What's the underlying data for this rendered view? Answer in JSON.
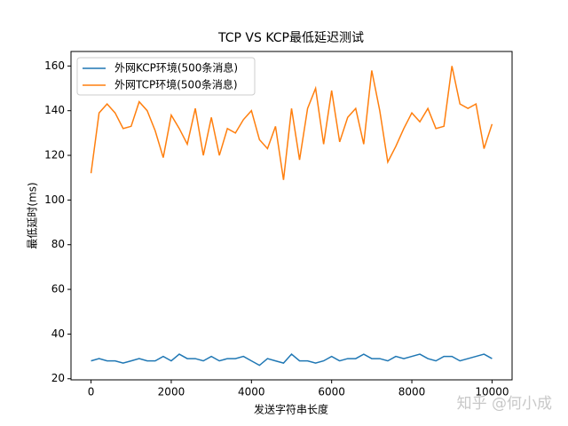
{
  "chart_data": {
    "type": "line",
    "title": "TCP VS KCP最低延迟测试",
    "x_label": "发送字符串长度",
    "y_label": "最低延时(ms)",
    "watermark": "知乎 @何小成",
    "x": [
      0,
      200,
      400,
      600,
      800,
      1000,
      1200,
      1400,
      1600,
      1800,
      2000,
      2200,
      2400,
      2600,
      2800,
      3000,
      3200,
      3400,
      3600,
      3800,
      4000,
      4200,
      4400,
      4600,
      4800,
      5000,
      5200,
      5400,
      5600,
      5800,
      6000,
      6200,
      6400,
      6600,
      6800,
      7000,
      7200,
      7400,
      7600,
      7800,
      8000,
      8200,
      8400,
      8600,
      8800,
      9000,
      9200,
      9400,
      9600,
      9800,
      10000
    ],
    "series": [
      {
        "name": "外网KCP环境(500条消息)",
        "color": "#1f77b4",
        "values": [
          28,
          29,
          28,
          28,
          27,
          28,
          29,
          28,
          28,
          30,
          28,
          31,
          29,
          29,
          28,
          30,
          28,
          29,
          29,
          30,
          28,
          26,
          29,
          28,
          27,
          31,
          28,
          28,
          27,
          28,
          30,
          28,
          29,
          29,
          31,
          29,
          29,
          28,
          30,
          29,
          30,
          31,
          29,
          28,
          30,
          30,
          28,
          29,
          30,
          31,
          29
        ]
      },
      {
        "name": "外网TCP环境(500条消息)",
        "color": "#ff7f0e",
        "values": [
          112,
          139,
          143,
          139,
          132,
          133,
          144,
          140,
          131,
          119,
          138,
          132,
          125,
          141,
          120,
          137,
          120,
          132,
          130,
          136,
          140,
          127,
          123,
          133,
          109,
          141,
          118,
          141,
          150,
          125,
          149,
          126,
          137,
          141,
          125,
          158,
          140,
          117,
          124,
          132,
          139,
          135,
          141,
          132,
          133,
          160,
          143,
          141,
          143,
          123,
          134
        ]
      }
    ],
    "xlim": [
      -500,
      10500
    ],
    "ylim": [
      19.5,
      166.5
    ],
    "xticks": [
      0,
      2000,
      4000,
      6000,
      8000,
      10000
    ],
    "yticks": [
      20,
      40,
      60,
      80,
      100,
      120,
      140,
      160
    ],
    "legend": "upper left"
  }
}
